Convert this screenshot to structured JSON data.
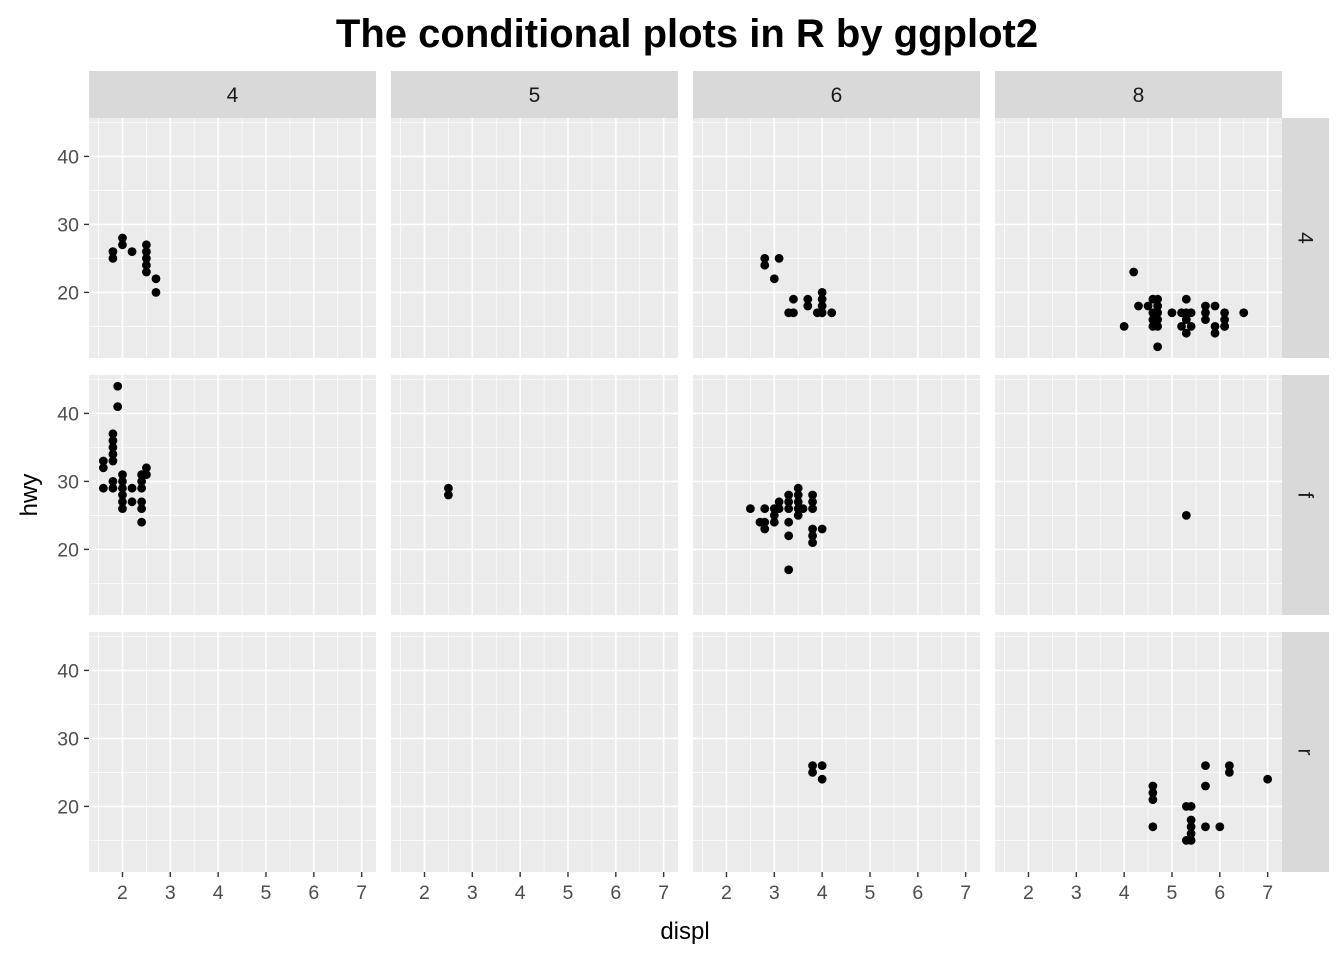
{
  "chart_data": {
    "type": "scatter",
    "title": "The conditional plots in R by ggplot2",
    "xlabel": "displ",
    "ylabel": "hwy",
    "xlim": [
      1.3,
      7.3
    ],
    "ylim": [
      10.35,
      45.65
    ],
    "x_ticks": [
      2,
      3,
      4,
      5,
      6,
      7
    ],
    "y_ticks": [
      20,
      30,
      40
    ],
    "facet_cols": [
      "4",
      "5",
      "6",
      "8"
    ],
    "facet_rows": [
      "4",
      "f",
      "r"
    ],
    "grid": true,
    "colors": {
      "panel_background": "#ebebeb",
      "grid": "#ffffff",
      "strip_background": "#d9d9d9",
      "point": "#000000"
    },
    "panels": [
      {
        "row": "4",
        "col": "4",
        "points": [
          [
            1.8,
            25
          ],
          [
            1.8,
            26
          ],
          [
            2.0,
            27
          ],
          [
            2.0,
            28
          ],
          [
            2.2,
            26
          ],
          [
            2.5,
            23
          ],
          [
            2.5,
            24
          ],
          [
            2.5,
            25
          ],
          [
            2.5,
            26
          ],
          [
            2.5,
            27
          ],
          [
            2.7,
            20
          ],
          [
            2.7,
            22
          ]
        ]
      },
      {
        "row": "4",
        "col": "5",
        "points": []
      },
      {
        "row": "4",
        "col": "6",
        "points": [
          [
            2.8,
            24
          ],
          [
            2.8,
            25
          ],
          [
            3.0,
            22
          ],
          [
            3.1,
            25
          ],
          [
            3.3,
            17
          ],
          [
            3.4,
            17
          ],
          [
            3.4,
            19
          ],
          [
            3.7,
            18
          ],
          [
            3.7,
            19
          ],
          [
            3.9,
            17
          ],
          [
            4.0,
            17
          ],
          [
            4.0,
            18
          ],
          [
            4.0,
            19
          ],
          [
            4.0,
            20
          ],
          [
            4.2,
            17
          ]
        ]
      },
      {
        "row": "4",
        "col": "8",
        "points": [
          [
            4.0,
            15
          ],
          [
            4.2,
            23
          ],
          [
            4.3,
            18
          ],
          [
            4.5,
            18
          ],
          [
            4.6,
            15
          ],
          [
            4.6,
            16
          ],
          [
            4.6,
            17
          ],
          [
            4.6,
            19
          ],
          [
            4.7,
            12
          ],
          [
            4.7,
            15
          ],
          [
            4.7,
            16
          ],
          [
            4.7,
            17
          ],
          [
            4.7,
            18
          ],
          [
            4.7,
            19
          ],
          [
            5.0,
            17
          ],
          [
            5.2,
            15
          ],
          [
            5.2,
            17
          ],
          [
            5.3,
            14
          ],
          [
            5.3,
            16
          ],
          [
            5.3,
            17
          ],
          [
            5.3,
            19
          ],
          [
            5.4,
            15
          ],
          [
            5.4,
            17
          ],
          [
            5.7,
            16
          ],
          [
            5.7,
            17
          ],
          [
            5.7,
            18
          ],
          [
            5.9,
            15
          ],
          [
            5.9,
            18
          ],
          [
            6.1,
            15
          ],
          [
            6.1,
            17
          ],
          [
            6.1,
            16
          ],
          [
            6.5,
            17
          ],
          [
            6.1,
            15
          ],
          [
            5.9,
            14
          ]
        ]
      },
      {
        "row": "f",
        "col": "4",
        "points": [
          [
            1.6,
            29
          ],
          [
            1.6,
            32
          ],
          [
            1.6,
            33
          ],
          [
            1.8,
            29
          ],
          [
            1.8,
            30
          ],
          [
            1.8,
            33
          ],
          [
            1.8,
            34
          ],
          [
            1.8,
            35
          ],
          [
            1.8,
            36
          ],
          [
            1.8,
            37
          ],
          [
            1.9,
            41
          ],
          [
            1.9,
            44
          ],
          [
            2.0,
            26
          ],
          [
            2.0,
            27
          ],
          [
            2.0,
            28
          ],
          [
            2.0,
            29
          ],
          [
            2.0,
            30
          ],
          [
            2.0,
            31
          ],
          [
            2.2,
            27
          ],
          [
            2.2,
            29
          ],
          [
            2.4,
            24
          ],
          [
            2.4,
            26
          ],
          [
            2.4,
            27
          ],
          [
            2.4,
            29
          ],
          [
            2.4,
            30
          ],
          [
            2.4,
            31
          ],
          [
            2.5,
            31
          ],
          [
            2.5,
            32
          ]
        ]
      },
      {
        "row": "f",
        "col": "5",
        "points": [
          [
            2.5,
            28
          ],
          [
            2.5,
            29
          ]
        ]
      },
      {
        "row": "f",
        "col": "6",
        "points": [
          [
            2.5,
            26
          ],
          [
            2.7,
            24
          ],
          [
            2.8,
            23
          ],
          [
            2.8,
            24
          ],
          [
            2.8,
            26
          ],
          [
            3.0,
            24
          ],
          [
            3.0,
            25
          ],
          [
            3.0,
            26
          ],
          [
            3.1,
            26
          ],
          [
            3.1,
            27
          ],
          [
            3.3,
            17
          ],
          [
            3.3,
            22
          ],
          [
            3.3,
            24
          ],
          [
            3.3,
            26
          ],
          [
            3.3,
            27
          ],
          [
            3.3,
            28
          ],
          [
            3.5,
            25
          ],
          [
            3.5,
            26
          ],
          [
            3.5,
            27
          ],
          [
            3.5,
            28
          ],
          [
            3.5,
            29
          ],
          [
            3.6,
            26
          ],
          [
            3.8,
            21
          ],
          [
            3.8,
            22
          ],
          [
            3.8,
            23
          ],
          [
            3.8,
            26
          ],
          [
            3.8,
            27
          ],
          [
            3.8,
            28
          ],
          [
            4.0,
            23
          ]
        ]
      },
      {
        "row": "f",
        "col": "8",
        "points": [
          [
            5.3,
            25
          ]
        ]
      },
      {
        "row": "r",
        "col": "4",
        "points": []
      },
      {
        "row": "r",
        "col": "5",
        "points": []
      },
      {
        "row": "r",
        "col": "6",
        "points": [
          [
            3.8,
            25
          ],
          [
            3.8,
            26
          ],
          [
            4.0,
            24
          ],
          [
            4.0,
            26
          ]
        ]
      },
      {
        "row": "r",
        "col": "8",
        "points": [
          [
            4.6,
            17
          ],
          [
            4.6,
            21
          ],
          [
            4.6,
            22
          ],
          [
            4.6,
            23
          ],
          [
            5.3,
            15
          ],
          [
            5.3,
            20
          ],
          [
            5.4,
            15
          ],
          [
            5.4,
            16
          ],
          [
            5.4,
            17
          ],
          [
            5.4,
            18
          ],
          [
            5.4,
            20
          ],
          [
            5.7,
            17
          ],
          [
            5.7,
            23
          ],
          [
            5.7,
            26
          ],
          [
            6.0,
            17
          ],
          [
            6.2,
            25
          ],
          [
            6.2,
            26
          ],
          [
            7.0,
            24
          ]
        ]
      }
    ]
  }
}
